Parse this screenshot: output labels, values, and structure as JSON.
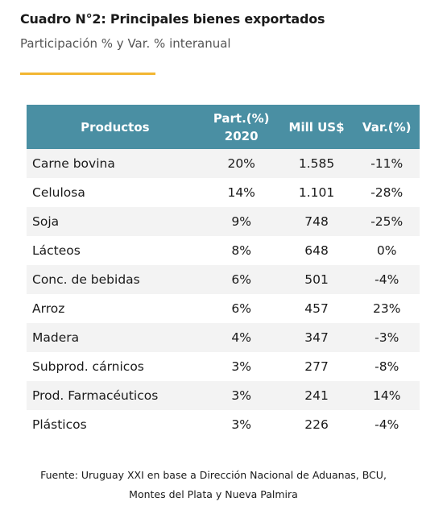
{
  "header": {
    "title": "Cuadro N°2: Principales bienes exportados",
    "subtitle": "Participación % y Var. % interanual"
  },
  "table": {
    "columns": [
      "Productos",
      "Part.(%)\n2020",
      "Mill US$",
      "Var.(%)"
    ],
    "rows": [
      [
        "Carne bovina",
        "20%",
        "1.585",
        "-11%"
      ],
      [
        "Celulosa",
        "14%",
        "1.101",
        "-28%"
      ],
      [
        "Soja",
        "9%",
        "748",
        "-25%"
      ],
      [
        "Lácteos",
        "8%",
        "648",
        "0%"
      ],
      [
        "Conc. de bebidas",
        "6%",
        "501",
        "-4%"
      ],
      [
        "Arroz",
        "6%",
        "457",
        "23%"
      ],
      [
        "Madera",
        "4%",
        "347",
        "-3%"
      ],
      [
        "Subprod. cárnicos",
        "3%",
        "277",
        "-8%"
      ],
      [
        "Prod. Farmacéuticos",
        "3%",
        "241",
        "14%"
      ],
      [
        "Plásticos",
        "3%",
        "226",
        "-4%"
      ]
    ]
  },
  "footer": {
    "lines": [
      "Fuente: Uruguay XXI en base a Dirección Nacional de Aduanas, BCU,",
      "Montes del Plata y Nueva Palmira"
    ]
  }
}
